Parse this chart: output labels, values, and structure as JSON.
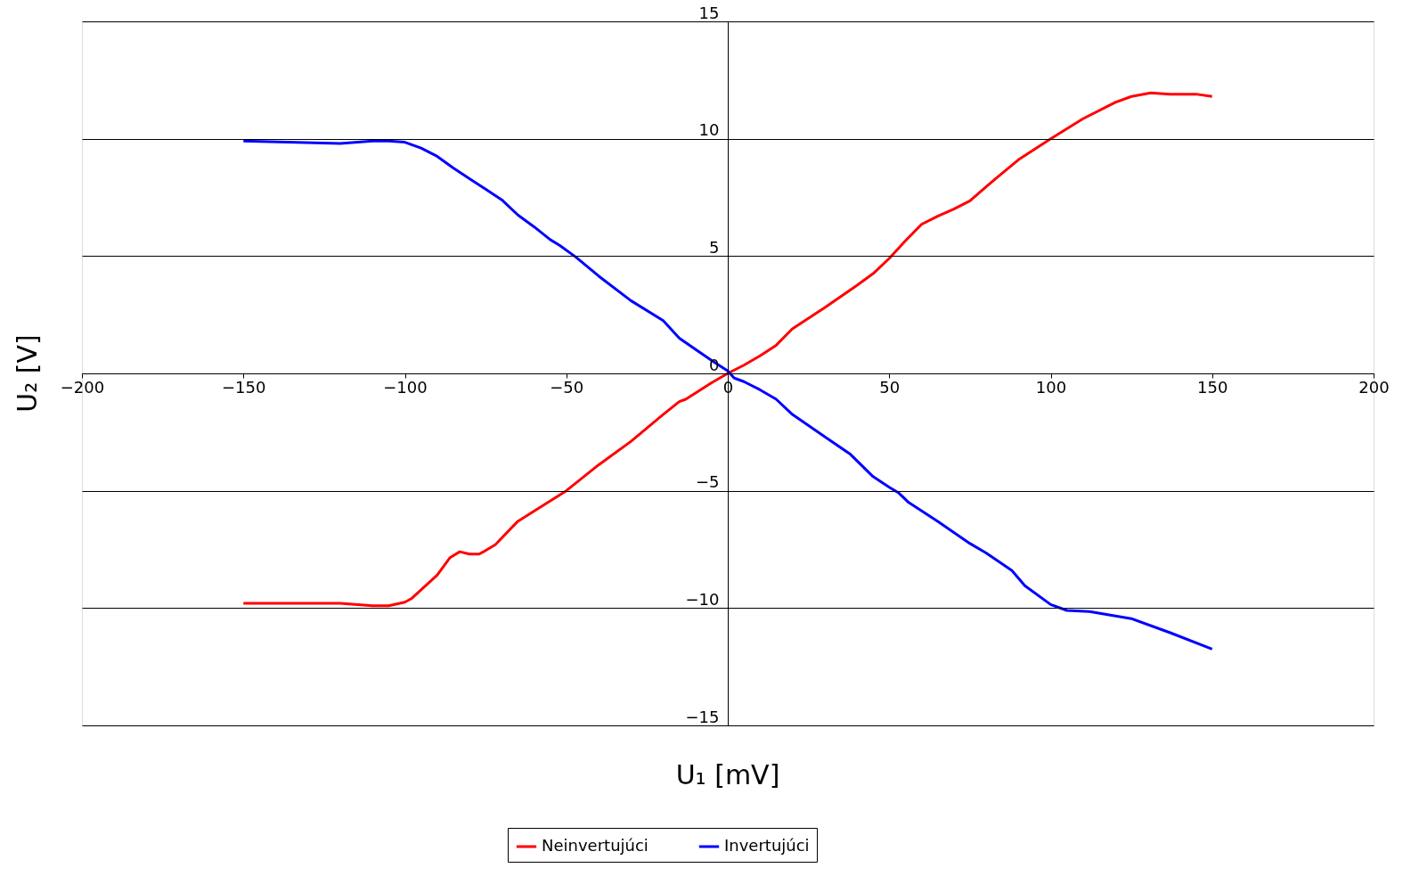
{
  "chart_data": {
    "type": "line",
    "xlabel": "U₁ [mV]",
    "ylabel": "U₂ [V]",
    "xlim": [
      -200,
      200
    ],
    "xticks": [
      -200,
      -150,
      -100,
      -50,
      0,
      50,
      100,
      150,
      200
    ],
    "ylim": [
      -15,
      15
    ],
    "yticks": [
      -15,
      -10,
      -5,
      0,
      5,
      10,
      15
    ],
    "grid": "y",
    "legend": "bottom",
    "line_style": "solid",
    "marker": "none",
    "series": [
      {
        "name": "Neinvertujúci",
        "color": "#ff0000",
        "x": [
          -150,
          -120,
          -110,
          -105,
          -100,
          -98,
          -90,
          -86,
          -83,
          -80,
          -77,
          -75,
          -72,
          -65,
          -58,
          -50,
          -40,
          -30,
          -20,
          -15,
          -13,
          -5,
          0,
          5,
          10,
          15,
          20,
          30,
          40,
          45,
          50,
          55,
          60,
          65,
          70,
          75,
          80,
          83,
          90,
          100,
          110,
          120,
          125,
          131,
          137,
          145,
          150
        ],
        "values": [
          -9.8,
          -9.8,
          -9.9,
          -9.9,
          -9.75,
          -9.6,
          -8.6,
          -7.85,
          -7.6,
          -7.7,
          -7.7,
          -7.55,
          -7.3,
          -6.3,
          -5.7,
          -5.0,
          -3.9,
          -2.9,
          -1.75,
          -1.2,
          -1.1,
          -0.4,
          0,
          0.35,
          0.75,
          1.2,
          1.9,
          2.8,
          3.75,
          4.25,
          4.9,
          5.65,
          6.35,
          6.7,
          7.0,
          7.35,
          7.95,
          8.3,
          9.1,
          10.0,
          10.85,
          11.55,
          11.8,
          11.95,
          11.9,
          11.9,
          11.8
        ]
      },
      {
        "name": "Invertujúci",
        "color": "#0000ff",
        "x": [
          -150,
          -120,
          -110,
          -105,
          -100,
          -95,
          -90,
          -85,
          -80,
          -75,
          -70,
          -65,
          -60,
          -55,
          -52,
          -47,
          -40,
          -30,
          -20,
          -15,
          -5,
          0,
          2,
          5,
          10,
          15,
          20,
          30,
          38,
          45,
          50,
          53,
          56,
          65,
          75,
          80,
          88,
          92,
          100,
          105,
          112,
          125,
          137,
          150
        ],
        "values": [
          9.9,
          9.8,
          9.9,
          9.9,
          9.85,
          9.6,
          9.25,
          8.75,
          8.3,
          7.85,
          7.4,
          6.75,
          6.25,
          5.7,
          5.45,
          4.95,
          4.15,
          3.1,
          2.25,
          1.5,
          0.55,
          0.1,
          -0.2,
          -0.35,
          -0.7,
          -1.1,
          -1.75,
          -2.7,
          -3.45,
          -4.4,
          -4.85,
          -5.1,
          -5.5,
          -6.3,
          -7.25,
          -7.65,
          -8.4,
          -9.05,
          -9.85,
          -10.1,
          -10.15,
          -10.45,
          -11.05,
          -11.75
        ]
      }
    ]
  }
}
